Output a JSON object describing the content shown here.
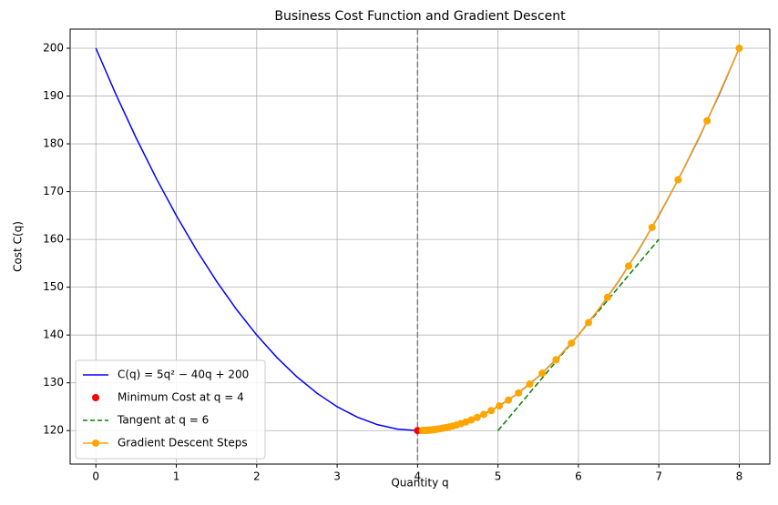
{
  "chart_data": {
    "type": "line",
    "title": "Business Cost Function and Gradient Descent",
    "x_label": "Quantity q",
    "y_label": "Cost C(q)",
    "xlim": [
      -0.32,
      8.38
    ],
    "ylim": [
      113,
      204
    ],
    "xticks": [
      0,
      1,
      2,
      3,
      4,
      5,
      6,
      7,
      8
    ],
    "yticks": [
      120,
      130,
      140,
      150,
      160,
      170,
      180,
      190,
      200
    ],
    "grid": true,
    "legend": "lower left",
    "vline": {
      "x": 4,
      "color": "#808080"
    },
    "series": [
      {
        "name": "C(q) = 5q² − 40q + 200",
        "color": "#0000ff",
        "style": "line",
        "x": [
          0,
          0.25,
          0.5,
          0.75,
          1,
          1.25,
          1.5,
          1.75,
          2,
          2.25,
          2.5,
          2.75,
          3,
          3.25,
          3.5,
          3.75,
          4,
          4.25,
          4.5,
          4.75,
          5,
          5.25,
          5.5,
          5.75,
          6,
          6.25,
          6.5,
          6.75,
          7,
          7.25,
          7.5,
          7.75,
          8
        ],
        "values": [
          200,
          190.3125,
          181.25,
          172.8125,
          165,
          157.8125,
          151.25,
          145.3125,
          140,
          135.3125,
          131.25,
          127.8125,
          125,
          122.8125,
          121.25,
          120.3125,
          120,
          120.3125,
          121.25,
          122.8125,
          125,
          127.8125,
          131.25,
          135.3125,
          140,
          145.3125,
          151.25,
          157.8125,
          165,
          172.8125,
          181.25,
          190.3125,
          200
        ]
      },
      {
        "name": "Minimum Cost at q = 4",
        "color": "#ff0000",
        "style": "scatter",
        "x": [
          4
        ],
        "values": [
          120
        ]
      },
      {
        "name": "Tangent at q = 6",
        "color": "#008000",
        "style": "dashed",
        "x": [
          5,
          7
        ],
        "values": [
          120,
          160
        ]
      },
      {
        "name": "Gradient Descent Steps",
        "color": "#ffa500",
        "style": "line-marker",
        "x": [
          8,
          7.6,
          7.24,
          6.916,
          6.6244,
          6.362,
          6.1258,
          5.9132,
          5.7219,
          5.5497,
          5.3947,
          5.2552,
          5.1297,
          5.0167,
          4.9151,
          4.8236,
          4.7412,
          4.6671,
          4.6004,
          4.5403,
          4.4863,
          4.4377,
          4.3939,
          4.3545,
          4.3191,
          4.2872,
          4.2584,
          4.2326,
          4.2093,
          4.1884,
          4.1696,
          4.1526,
          4.1374,
          4.1236,
          4.1113,
          4.1001,
          4.0901,
          4.0811,
          4.073,
          4.0657,
          4.0591
        ],
        "values": [
          200,
          184.8,
          172.488,
          162.515,
          154.437,
          147.894,
          142.594,
          138.301,
          134.824,
          132.007,
          129.726,
          127.878,
          126.381,
          125.169,
          124.187,
          123.391,
          122.747,
          122.225,
          121.802,
          121.46,
          121.183,
          120.958,
          120.776,
          120.628,
          120.509,
          120.412,
          120.334,
          120.271,
          120.219,
          120.177,
          120.144,
          120.116,
          120.094,
          120.076,
          120.062,
          120.05,
          120.041,
          120.033,
          120.027,
          120.022,
          120.017
        ]
      }
    ]
  }
}
